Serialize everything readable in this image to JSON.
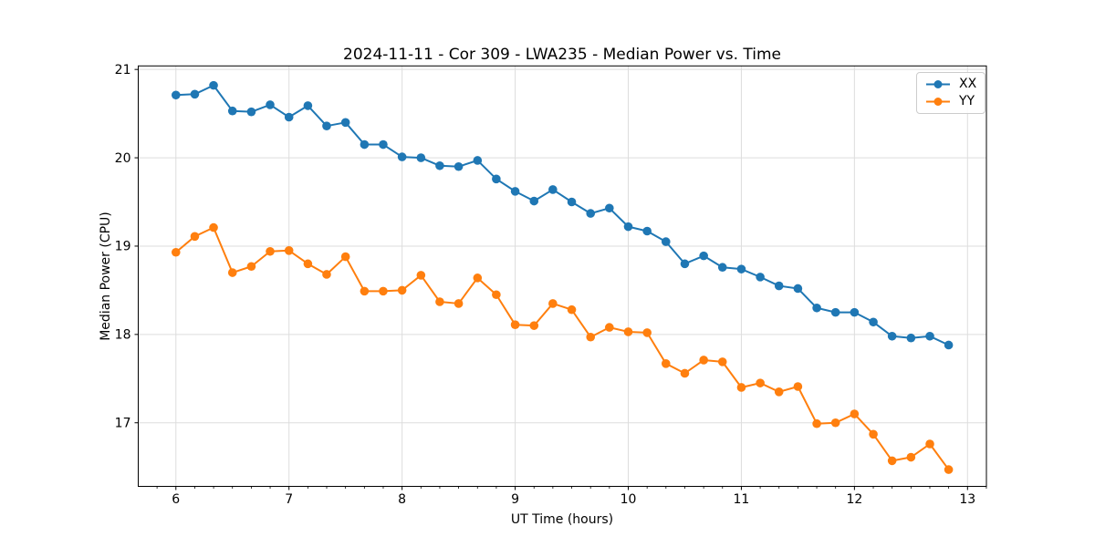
{
  "chart_data": {
    "type": "line",
    "title": "2024-11-11 - Cor 309 - LWA235 - Median Power vs. Time",
    "xlabel": "UT Time (hours)",
    "ylabel": "Median Power (CPU)",
    "x": [
      6.0,
      6.167,
      6.333,
      6.5,
      6.667,
      6.833,
      7.0,
      7.167,
      7.333,
      7.5,
      7.667,
      7.833,
      8.0,
      8.167,
      8.333,
      8.5,
      8.667,
      8.833,
      9.0,
      9.167,
      9.333,
      9.5,
      9.667,
      9.833,
      10.0,
      10.167,
      10.333,
      10.5,
      10.667,
      10.833,
      11.0,
      11.167,
      11.333,
      11.5,
      11.667,
      11.833,
      12.0,
      12.167,
      12.333,
      12.5,
      12.667,
      12.833
    ],
    "series": [
      {
        "name": "XX",
        "color": "#1f77b4",
        "values": [
          20.71,
          20.72,
          20.82,
          20.53,
          20.52,
          20.6,
          20.46,
          20.59,
          20.36,
          20.4,
          20.15,
          20.15,
          20.01,
          20.0,
          19.91,
          19.9,
          19.97,
          19.76,
          19.62,
          19.51,
          19.64,
          19.5,
          19.37,
          19.43,
          19.22,
          19.17,
          19.05,
          18.8,
          18.89,
          18.76,
          18.74,
          18.65,
          18.55,
          18.52,
          18.3,
          18.25,
          18.25,
          18.14,
          17.98,
          17.96,
          17.98,
          17.88
        ]
      },
      {
        "name": "YY",
        "color": "#ff7f0e",
        "values": [
          18.93,
          19.11,
          19.21,
          18.7,
          18.77,
          18.94,
          18.95,
          18.8,
          18.68,
          18.88,
          18.49,
          18.49,
          18.5,
          18.67,
          18.37,
          18.35,
          18.64,
          18.45,
          18.11,
          18.1,
          18.35,
          18.28,
          17.97,
          18.08,
          18.03,
          18.02,
          17.67,
          17.56,
          17.71,
          17.69,
          17.4,
          17.45,
          17.35,
          17.41,
          16.99,
          17.0,
          17.1,
          16.87,
          16.57,
          16.61,
          16.76,
          16.47
        ]
      }
    ],
    "xlim": [
      5.667,
      13.167
    ],
    "ylim": [
      16.28,
      21.04
    ],
    "xticks": [
      6,
      7,
      8,
      9,
      10,
      11,
      12,
      13
    ],
    "yticks": [
      17,
      18,
      19,
      20,
      21
    ],
    "x_minor_step": 0.1667,
    "grid": true,
    "grid_color": "#dddddd",
    "axis_color": "#000000",
    "legend_position": "upper right",
    "marker": "o",
    "line_width": 2,
    "marker_radius": 4.8
  }
}
